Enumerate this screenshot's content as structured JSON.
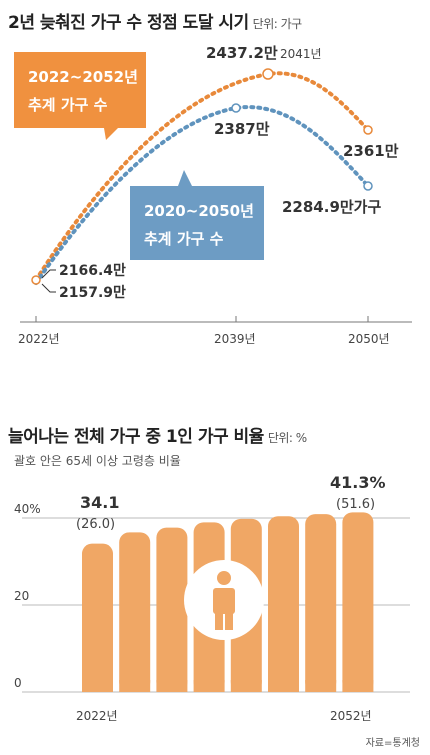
{
  "chart1": {
    "title": "2년 늦춰진 가구 수 정점 도달 시기",
    "unit": "단위: 가구",
    "x_labels": [
      "2022년",
      "2039년",
      "2050년"
    ],
    "peak_year_label": "2041년",
    "orange_colors": {
      "line": "#e8893a",
      "box": "#f0913f"
    },
    "blue_colors": {
      "line": "#5f93bd",
      "box": "#6d9cc4"
    }
  },
  "chart2": {
    "title": "늘어나는 전체 가구 중 1인 가구 비율",
    "unit": "단위: %",
    "subtitle": "괄호 안은 65세 이상 고령층 비율",
    "y_ticks": [
      "40%",
      "20",
      "0"
    ],
    "x_labels": [
      "2022년",
      "2052년"
    ],
    "bar_color": "#f0a765",
    "first_value": "34.1",
    "first_paren": "(26.0)",
    "last_value": "41.3%",
    "last_paren": "(51.6)",
    "person_icon": "person-icon"
  },
  "source": "자료=통계청",
  "chart_data": [
    {
      "type": "line",
      "title": "2년 늦춰진 가구 수 정점 도달 시기",
      "unit": "가구",
      "series": [
        {
          "name": "2022~2052년 추계 가구 수",
          "points": [
            {
              "x": 2022,
              "y": 21664000,
              "label": "2166.4만"
            },
            {
              "x": 2041,
              "y": 24372000,
              "label": "2437.2만"
            },
            {
              "x": 2052,
              "y": 23610000,
              "label": "2361만"
            }
          ]
        },
        {
          "name": "2020~2050년 추계 가구 수",
          "points": [
            {
              "x": 2022,
              "y": 21579000,
              "label": "2157.9만"
            },
            {
              "x": 2039,
              "y": 23870000,
              "label": "2387만"
            },
            {
              "x": 2050,
              "y": 22849000,
              "label": "2284.9만가구"
            }
          ]
        }
      ]
    },
    {
      "type": "bar",
      "title": "늘어나는 전체 가구 중 1인 가구 비율",
      "unit": "%",
      "categories": [
        "2022년",
        "",
        "",
        "",
        "",
        "",
        "",
        "2052년"
      ],
      "values": [
        34.1,
        36.7,
        37.8,
        39.0,
        39.8,
        40.4,
        40.9,
        41.3
      ],
      "elderly_share": [
        26.0,
        null,
        null,
        null,
        null,
        null,
        null,
        51.6
      ],
      "ylim": [
        0,
        45
      ],
      "yticks": [
        0,
        20,
        40
      ]
    }
  ]
}
